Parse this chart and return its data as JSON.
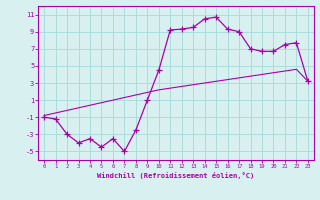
{
  "hours": [
    0,
    1,
    2,
    3,
    4,
    5,
    6,
    7,
    8,
    9,
    10,
    11,
    12,
    13,
    14,
    15,
    16,
    17,
    18,
    19,
    20,
    21,
    22,
    23
  ],
  "windchill": [
    -1,
    -1.2,
    -3,
    -4,
    -3.5,
    -4.5,
    -3.5,
    -5,
    -2.5,
    1,
    4.5,
    9.2,
    9.3,
    9.5,
    10.5,
    10.7,
    9.3,
    9,
    7,
    6.7,
    6.7,
    7.5,
    7.7,
    3.2
  ],
  "ref_line": [
    -0.8,
    -0.5,
    -0.2,
    0.1,
    0.4,
    0.7,
    1.0,
    1.3,
    1.6,
    1.9,
    2.2,
    2.4,
    2.6,
    2.8,
    3.0,
    3.2,
    3.4,
    3.6,
    3.8,
    4.0,
    4.2,
    4.4,
    4.6,
    3.2
  ],
  "xlabel": "Windchill (Refroidissement éolien,°C)",
  "bg_color": "#d8f0f0",
  "line_color": "#aa00aa",
  "grid_color": "#aadddd",
  "xlim": [
    -0.5,
    23.5
  ],
  "ylim": [
    -6,
    12
  ],
  "yticks": [
    -5,
    -3,
    -1,
    1,
    3,
    5,
    7,
    9,
    11
  ],
  "xticks": [
    0,
    1,
    2,
    3,
    4,
    5,
    6,
    7,
    8,
    9,
    10,
    11,
    12,
    13,
    14,
    15,
    16,
    17,
    18,
    19,
    20,
    21,
    22,
    23
  ]
}
